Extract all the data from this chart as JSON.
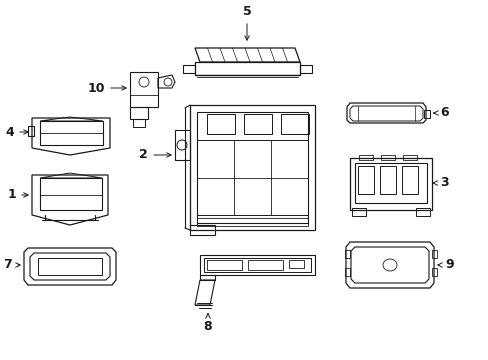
{
  "bg_color": "#ffffff",
  "line_color": "#1a1a1a",
  "lw": 0.8,
  "figsize": [
    4.89,
    3.6
  ],
  "dpi": 100
}
